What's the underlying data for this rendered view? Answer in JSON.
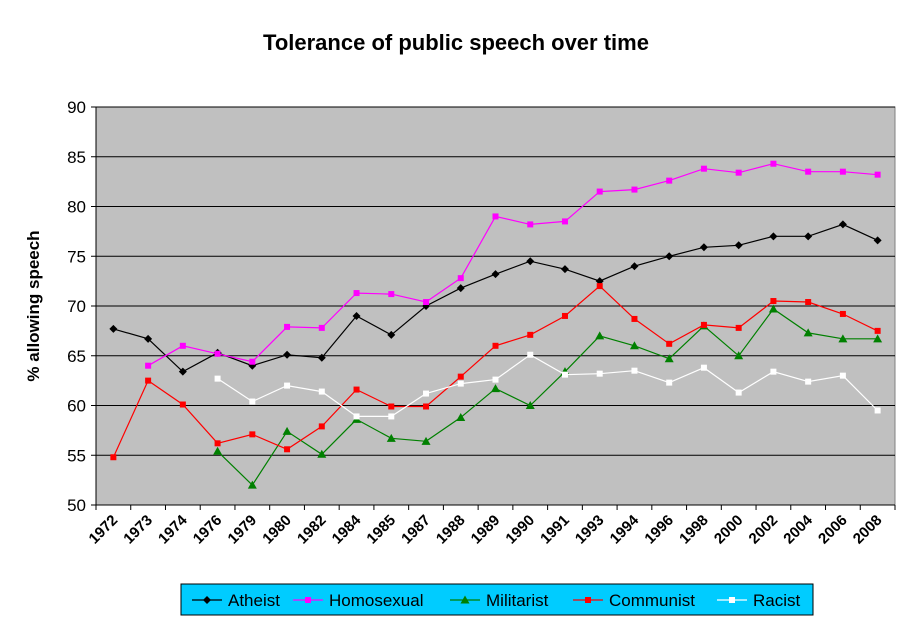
{
  "chart_data": {
    "type": "line",
    "title": "Tolerance of public speech over time",
    "ylabel": "% allowing speech",
    "xlabel": "",
    "ylim": [
      50,
      90
    ],
    "yticks": [
      50,
      55,
      60,
      65,
      70,
      75,
      80,
      85,
      90
    ],
    "grid": true,
    "legend_position": "bottom",
    "plot_background": "#c0c0c0",
    "categories": [
      "1972",
      "1973",
      "1974",
      "1976",
      "1979",
      "1980",
      "1982",
      "1984",
      "1985",
      "1987",
      "1988",
      "1989",
      "1990",
      "1991",
      "1993",
      "1994",
      "1996",
      "1998",
      "2000",
      "2002",
      "2004",
      "2006",
      "2008"
    ],
    "series": [
      {
        "name": "Atheist",
        "color": "#000000",
        "marker": "diamond",
        "values": [
          67.7,
          66.7,
          63.4,
          65.3,
          64.0,
          65.1,
          64.8,
          69.0,
          67.1,
          70.0,
          71.8,
          73.2,
          74.5,
          73.7,
          72.5,
          74.0,
          75.0,
          75.9,
          76.1,
          77.0,
          77.0,
          78.2,
          76.6
        ]
      },
      {
        "name": "Homosexual",
        "color": "#ff00ff",
        "marker": "square",
        "values": [
          null,
          64.0,
          66.0,
          65.2,
          64.4,
          67.9,
          67.8,
          71.3,
          71.2,
          70.4,
          72.8,
          79.0,
          78.2,
          78.5,
          81.5,
          81.7,
          82.6,
          83.8,
          83.4,
          84.3,
          83.5,
          83.5,
          83.2
        ]
      },
      {
        "name": "Militarist",
        "color": "#008000",
        "marker": "triangle",
        "values": [
          null,
          null,
          null,
          55.4,
          52.0,
          57.4,
          55.1,
          58.6,
          56.7,
          56.4,
          58.8,
          61.7,
          60.0,
          63.4,
          67.0,
          66.0,
          64.7,
          68.0,
          65.0,
          69.7,
          67.3,
          66.7,
          66.7
        ]
      },
      {
        "name": "Communist",
        "color": "#ff0000",
        "marker": "square",
        "values": [
          54.8,
          62.5,
          60.1,
          56.2,
          57.1,
          55.6,
          57.9,
          61.6,
          59.9,
          59.9,
          62.9,
          66.0,
          67.1,
          69.0,
          72.0,
          68.7,
          66.2,
          68.1,
          67.8,
          70.5,
          70.4,
          69.2,
          67.5
        ]
      },
      {
        "name": "Racist",
        "color": "#ffffff",
        "marker": "square",
        "values": [
          null,
          null,
          null,
          62.7,
          60.4,
          62.0,
          61.4,
          58.9,
          58.9,
          61.2,
          62.2,
          62.6,
          65.1,
          63.1,
          63.2,
          63.5,
          62.3,
          63.8,
          61.3,
          63.4,
          62.4,
          63.0,
          59.5
        ]
      }
    ]
  }
}
